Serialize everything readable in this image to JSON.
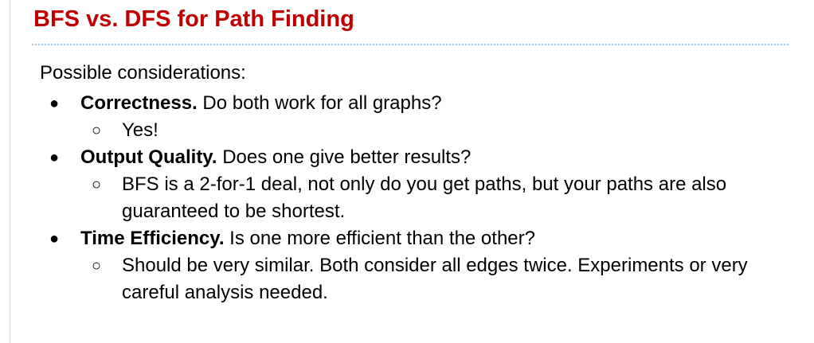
{
  "slide": {
    "title": "BFS vs. DFS for Path Finding",
    "intro": "Possible considerations:",
    "items": [
      {
        "term": "Correctness.",
        "question": " Do both work for all graphs?",
        "answer": "Yes!"
      },
      {
        "term": "Output Quality.",
        "question": " Does one give better results?",
        "answer": "BFS is a 2-for-1 deal, not only do you get paths, but your paths are also guaranteed to be shortest."
      },
      {
        "term": "Time Efficiency.",
        "question": " Is one more efficient than the other?",
        "answer": "Should be very similar. Both consider all edges twice. Experiments or very careful analysis needed."
      }
    ]
  },
  "bullets": {
    "level1": "●",
    "level2": "○"
  },
  "colors": {
    "title": "#c00000",
    "divider": "#9fc5e8"
  }
}
